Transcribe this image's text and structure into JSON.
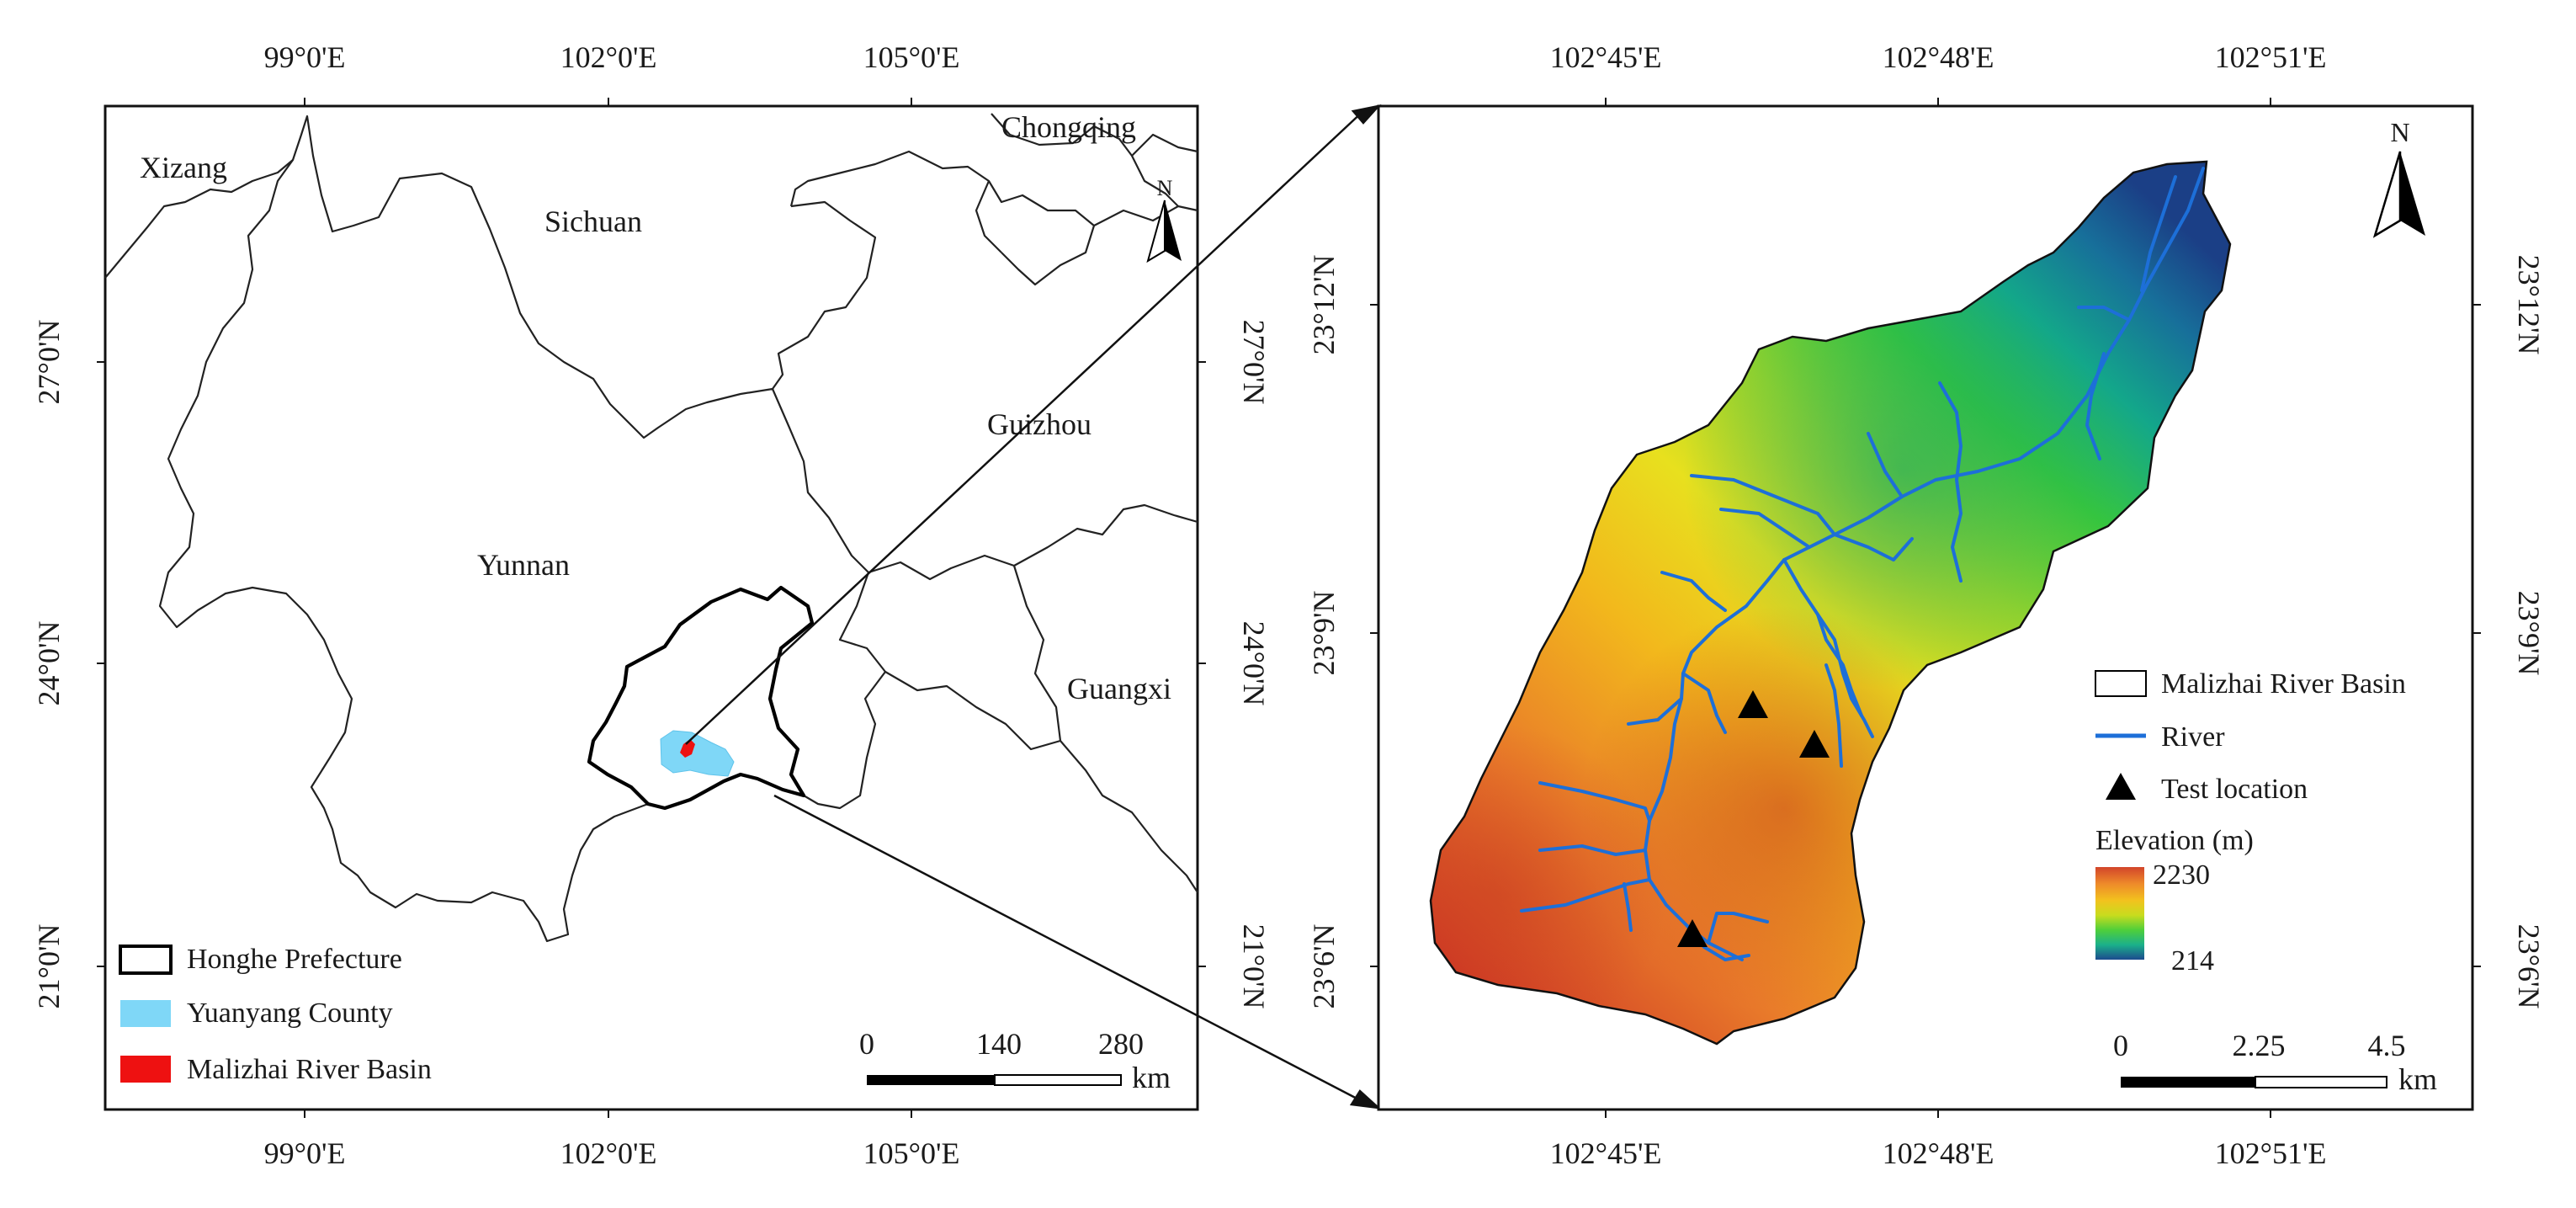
{
  "overview_map": {
    "top_ticks": [
      "99°0'E",
      "102°0'E",
      "105°0'E"
    ],
    "bottom_ticks": [
      "99°0'E",
      "102°0'E",
      "105°0'E"
    ],
    "left_ticks": [
      "27°0'N",
      "24°0'N",
      "21°0'N"
    ],
    "right_ticks": [
      "27°0'N",
      "24°0'N",
      "21°0'N"
    ],
    "region_labels": {
      "xizang": "Xizang",
      "sichuan": "Sichuan",
      "chongqing": "Chongqing",
      "guizhou": "Guizhou",
      "yunnan": "Yunnan",
      "guangxi": "Guangxi"
    },
    "north_label": "N",
    "legend": {
      "honghe": "Honghe Prefecture",
      "yuanyang": "Yuanyang County",
      "basin": "Malizhai River Basin"
    },
    "scale": {
      "labels": [
        "0",
        "140",
        "280"
      ],
      "unit": "km"
    },
    "colors": {
      "yuanyang": "#7fd7f7",
      "basin": "#ee1111"
    }
  },
  "detail_map": {
    "top_ticks": [
      "102°45'E",
      "102°48'E",
      "102°51'E"
    ],
    "bottom_ticks": [
      "102°45'E",
      "102°48'E",
      "102°51'E"
    ],
    "left_ticks": [
      "23°12'N",
      "23°9'N",
      "23°6'N"
    ],
    "right_ticks": [
      "23°12'N",
      "23°9'N",
      "23°6'N"
    ],
    "north_label": "N",
    "legend": {
      "basin": "Malizhai River Basin",
      "river": "River",
      "test": "Test location",
      "elevation_title": "Elevation (m)",
      "elev_max": "2230",
      "elev_min": "214"
    },
    "scale": {
      "labels": [
        "0",
        "2.25",
        "4.5"
      ],
      "unit": "km"
    },
    "colors": {
      "river": "#1d6fd8",
      "test": "#000000"
    },
    "elevation_ramp": [
      "#d2452a",
      "#ee8a2a",
      "#f2c21e",
      "#c8dc1e",
      "#4fcf3a",
      "#1bb08a",
      "#1c4b8e"
    ]
  }
}
